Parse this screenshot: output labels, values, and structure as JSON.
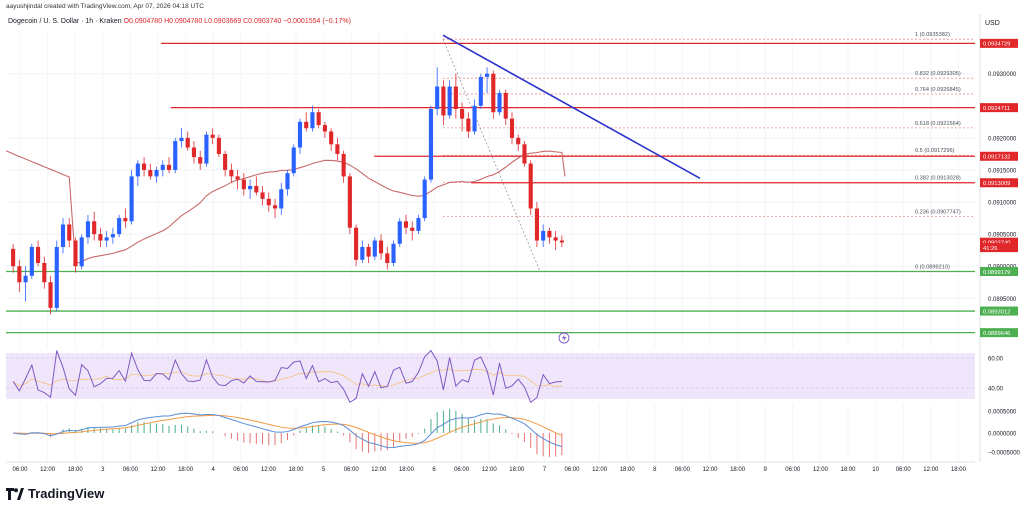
{
  "header": {
    "byline": "aayushjindal created with TradingView.com, Apr 07, 2026 04:18 UTC",
    "symbol": "Dogecoin / U. S. Dollar · 1h · Kraken",
    "open": "O0.0904780",
    "high": "H0.0904780",
    "low": "L0.0903669",
    "close": "C0.0903740",
    "change": "−0.0001554 (−0.17%)",
    "currency": "USD"
  },
  "brand": {
    "name": "TradingView",
    "logo_icon": "tradingview-logo-icon"
  },
  "colors": {
    "up": "#2962ff",
    "down": "#e0272a",
    "resistance": "#e0272a",
    "support": "#4caf50",
    "trendline": "#2a33c9",
    "ma": "#c86a6a",
    "rsi": "#7e57c2",
    "rsi_band": "#f0e6fb",
    "macd": "#5b8dd6",
    "signal": "#f39b45",
    "fib": "#f08f8f"
  },
  "chart_data": {
    "type": "candlestick",
    "price_range": [
      0.08885,
      0.09365
    ],
    "y_ticks": [
      "0.0930000",
      "0.0920000",
      "0.0915000",
      "0.0910000",
      "0.0905000",
      "0.0900000",
      "0.0895000"
    ],
    "x_ticks": [
      "06:00",
      "12:00",
      "18:00",
      "3",
      "06:00",
      "12:00",
      "18:00",
      "4",
      "06:00",
      "12:00",
      "18:00",
      "5",
      "06:00",
      "12:00",
      "18:00",
      "6",
      "06:00",
      "12:00",
      "18:00",
      "7",
      "06:00",
      "12:00",
      "18:00",
      "8",
      "06:00",
      "12:00",
      "18:00",
      "9",
      "06:00",
      "12:00",
      "18:00",
      "10",
      "06:00",
      "12:00",
      "18:00"
    ],
    "price_labels": [
      {
        "text": "0.0934729",
        "value": 0.0934729,
        "color": "#e0272a"
      },
      {
        "text": "0.0924711",
        "value": 0.0924711,
        "color": "#e0272a"
      },
      {
        "text": "0.0917132",
        "value": 0.0917132,
        "color": "#e0272a"
      },
      {
        "text": "0.0913009",
        "value": 0.0913009,
        "color": "#e0272a"
      },
      {
        "text": "0.0903740",
        "value": 0.090374,
        "color": "#e0272a"
      },
      {
        "text": "41:26",
        "value": 0.09029,
        "color": "#e0272a"
      },
      {
        "text": "0.0899179",
        "value": 0.0899179,
        "color": "#4caf50"
      },
      {
        "text": "0.0893012",
        "value": 0.0893012,
        "color": "#4caf50"
      },
      {
        "text": "0.0889646",
        "value": 0.0889646,
        "color": "#4caf50"
      }
    ],
    "horizontal_levels": [
      {
        "value": 0.0934729,
        "color": "#e0272a",
        "from": 0.16
      },
      {
        "value": 0.0924711,
        "color": "#e0272a",
        "from": 0.17
      },
      {
        "value": 0.0917132,
        "color": "#e0272a",
        "from": 0.38
      },
      {
        "value": 0.0913009,
        "color": "#e0272a",
        "from": 0.48
      },
      {
        "value": 0.0899179,
        "color": "#4caf50",
        "from": 0.0
      },
      {
        "value": 0.0893012,
        "color": "#4caf50",
        "from": 0.0
      },
      {
        "value": 0.0889646,
        "color": "#4caf50",
        "from": 0.0
      }
    ],
    "fibonacci": [
      {
        "label": "1 (0.0935382)",
        "value": 0.0935382
      },
      {
        "label": "0.832 (0.0929305)",
        "value": 0.0929305
      },
      {
        "label": "0.764 (0.0926845)",
        "value": 0.0926845
      },
      {
        "label": "0.618 (0.0921564)",
        "value": 0.0921564
      },
      {
        "label": "0.5 (0.0917296)",
        "value": 0.0917296
      },
      {
        "label": "0.382 (0.0913028)",
        "value": 0.0913028
      },
      {
        "label": "0.236 (0.0907747)",
        "value": 0.0907747
      },
      {
        "label": "0 (0.0899210)",
        "value": 0.089921
      }
    ],
    "candles": [
      [
        0.09027,
        0.09035,
        0.0899,
        0.09
      ],
      [
        0.09,
        0.0901,
        0.0896,
        0.08975
      ],
      [
        0.08975,
        0.09,
        0.08945,
        0.08985
      ],
      [
        0.08985,
        0.09035,
        0.0898,
        0.0903
      ],
      [
        0.0903,
        0.0904,
        0.09,
        0.09005
      ],
      [
        0.09005,
        0.09015,
        0.08965,
        0.08975
      ],
      [
        0.08975,
        0.08985,
        0.08925,
        0.08935
      ],
      [
        0.08935,
        0.0904,
        0.0893,
        0.0903
      ],
      [
        0.0903,
        0.09075,
        0.0902,
        0.09065
      ],
      [
        0.09065,
        0.09075,
        0.0903,
        0.0904
      ],
      [
        0.0904,
        0.09045,
        0.0899,
        0.09
      ],
      [
        0.09,
        0.0905,
        0.08995,
        0.09045
      ],
      [
        0.09045,
        0.0908,
        0.09035,
        0.0907
      ],
      [
        0.0907,
        0.09085,
        0.0904,
        0.0905
      ],
      [
        0.0905,
        0.0906,
        0.0903,
        0.0904
      ],
      [
        0.0904,
        0.09055,
        0.0903,
        0.09045
      ],
      [
        0.09045,
        0.0906,
        0.09035,
        0.0905
      ],
      [
        0.0905,
        0.0908,
        0.09045,
        0.09075
      ],
      [
        0.09075,
        0.0909,
        0.0906,
        0.0907
      ],
      [
        0.0907,
        0.0915,
        0.09065,
        0.0914
      ],
      [
        0.0914,
        0.09165,
        0.09125,
        0.0916
      ],
      [
        0.0916,
        0.0917,
        0.0914,
        0.0915
      ],
      [
        0.0915,
        0.0916,
        0.09135,
        0.0914
      ],
      [
        0.0914,
        0.09155,
        0.0913,
        0.0915
      ],
      [
        0.0915,
        0.09165,
        0.0914,
        0.09158
      ],
      [
        0.09158,
        0.0917,
        0.09145,
        0.0915
      ],
      [
        0.0915,
        0.092,
        0.09145,
        0.09195
      ],
      [
        0.09195,
        0.09215,
        0.09185,
        0.092
      ],
      [
        0.092,
        0.0921,
        0.0918,
        0.09185
      ],
      [
        0.09185,
        0.09195,
        0.0916,
        0.0917
      ],
      [
        0.0917,
        0.0918,
        0.0915,
        0.0916
      ],
      [
        0.0916,
        0.0921,
        0.09155,
        0.09205
      ],
      [
        0.09205,
        0.09215,
        0.0919,
        0.092
      ],
      [
        0.092,
        0.09205,
        0.0917,
        0.09175
      ],
      [
        0.09175,
        0.0918,
        0.0914,
        0.0915
      ],
      [
        0.0915,
        0.0916,
        0.0913,
        0.0914
      ],
      [
        0.0914,
        0.0915,
        0.0912,
        0.09135
      ],
      [
        0.09135,
        0.09145,
        0.0911,
        0.0912
      ],
      [
        0.0912,
        0.09135,
        0.09105,
        0.09125
      ],
      [
        0.09125,
        0.0914,
        0.0911,
        0.09115
      ],
      [
        0.09115,
        0.09125,
        0.09095,
        0.09105
      ],
      [
        0.09105,
        0.09115,
        0.09085,
        0.09095
      ],
      [
        0.09095,
        0.09105,
        0.09075,
        0.0909
      ],
      [
        0.0909,
        0.0913,
        0.0908,
        0.0912
      ],
      [
        0.0912,
        0.0915,
        0.0911,
        0.09145
      ],
      [
        0.09145,
        0.0919,
        0.0914,
        0.09185
      ],
      [
        0.09185,
        0.0923,
        0.09175,
        0.09225
      ],
      [
        0.09225,
        0.0924,
        0.0921,
        0.09215
      ],
      [
        0.09215,
        0.0925,
        0.0921,
        0.0924
      ],
      [
        0.0924,
        0.09245,
        0.09215,
        0.0922
      ],
      [
        0.0922,
        0.09225,
        0.092,
        0.0921
      ],
      [
        0.0921,
        0.09215,
        0.0918,
        0.0919
      ],
      [
        0.0919,
        0.092,
        0.09165,
        0.09175
      ],
      [
        0.09175,
        0.0918,
        0.0913,
        0.0914
      ],
      [
        0.0914,
        0.09145,
        0.0905,
        0.0906
      ],
      [
        0.0906,
        0.09065,
        0.09,
        0.0901
      ],
      [
        0.0901,
        0.0904,
        0.09005,
        0.0903
      ],
      [
        0.0903,
        0.09035,
        0.09005,
        0.09015
      ],
      [
        0.09015,
        0.09045,
        0.0901,
        0.0904
      ],
      [
        0.0904,
        0.0905,
        0.0901,
        0.0902
      ],
      [
        0.0902,
        0.0903,
        0.08995,
        0.09005
      ],
      [
        0.09005,
        0.0904,
        0.09,
        0.09035
      ],
      [
        0.09035,
        0.09075,
        0.0903,
        0.0907
      ],
      [
        0.0907,
        0.0908,
        0.0905,
        0.0906
      ],
      [
        0.0906,
        0.0907,
        0.0904,
        0.09055
      ],
      [
        0.09055,
        0.0908,
        0.0905,
        0.09075
      ],
      [
        0.09075,
        0.0914,
        0.0907,
        0.09135
      ],
      [
        0.09135,
        0.0925,
        0.0913,
        0.09245
      ],
      [
        0.09245,
        0.0931,
        0.09235,
        0.0928
      ],
      [
        0.0928,
        0.0929,
        0.0922,
        0.09235
      ],
      [
        0.09235,
        0.0929,
        0.0923,
        0.0928
      ],
      [
        0.0928,
        0.093,
        0.0923,
        0.09245
      ],
      [
        0.09245,
        0.09255,
        0.0921,
        0.0923
      ],
      [
        0.0923,
        0.0924,
        0.092,
        0.0921
      ],
      [
        0.0921,
        0.0926,
        0.09205,
        0.0925
      ],
      [
        0.0925,
        0.093,
        0.09245,
        0.09295
      ],
      [
        0.09295,
        0.0931,
        0.0927,
        0.093
      ],
      [
        0.093,
        0.09305,
        0.0923,
        0.0924
      ],
      [
        0.0924,
        0.09275,
        0.09235,
        0.0927
      ],
      [
        0.0927,
        0.09275,
        0.0922,
        0.0923
      ],
      [
        0.0923,
        0.0924,
        0.0919,
        0.092
      ],
      [
        0.092,
        0.09205,
        0.0918,
        0.0919
      ],
      [
        0.0919,
        0.09195,
        0.09155,
        0.0916
      ],
      [
        0.0916,
        0.09165,
        0.0908,
        0.0909
      ],
      [
        0.0909,
        0.091,
        0.0903,
        0.0904
      ],
      [
        0.0904,
        0.09065,
        0.0903,
        0.09055
      ],
      [
        0.09055,
        0.0906,
        0.09035,
        0.09045
      ],
      [
        0.09045,
        0.09055,
        0.09025,
        0.0904
      ],
      [
        0.0904,
        0.09048,
        0.0903,
        0.09037
      ]
    ]
  }
}
